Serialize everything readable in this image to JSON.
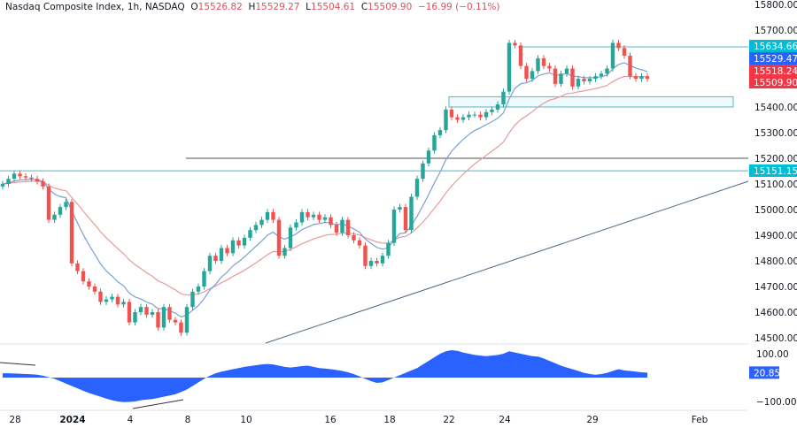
{
  "header": {
    "symbol": "Nasdaq Composite Index, 1h, NASDAQ",
    "open_label": "O",
    "open": "15526.82",
    "high_label": "H",
    "high": "15529.27",
    "low_label": "L",
    "low": "15504.61",
    "close_label": "C",
    "close": "15509.90",
    "change": "−16.99 (−0.11%)"
  },
  "colors": {
    "up": "#26a69a",
    "down": "#ef5350",
    "ema_fast": "#7b9fd4",
    "ema_slow": "#e89a9a",
    "oscillator": "#2962ff",
    "cyan_line": "#4fb8c4",
    "trendline": "#4a6a8a"
  },
  "price_axis": {
    "labels": [
      "15800.00",
      "15700.00",
      "15400.00",
      "15300.00",
      "15200.00",
      "15100.00",
      "15000.00",
      "14900.00",
      "14800.00",
      "14700.00",
      "14600.00",
      "14500.00"
    ],
    "values": [
      15800,
      15700,
      15400,
      15300,
      15200,
      15100,
      15000,
      14900,
      14800,
      14700,
      14600,
      14500
    ],
    "range": [
      14500,
      15800
    ]
  },
  "price_tags": [
    {
      "label": "15634.66",
      "value": 15634.66,
      "color": "#00bcd4"
    },
    {
      "label": "15529.47",
      "value": 15529.47,
      "color": "#2962ff"
    },
    {
      "label": "15518.24",
      "value": 15518.24,
      "color": "#f23645"
    },
    {
      "label": "15509.90",
      "value": 15509.9,
      "color": "#f23645"
    },
    {
      "label": "15151.15",
      "value": 15151.15,
      "color": "#00bcd4"
    }
  ],
  "osc_axis": {
    "labels": [
      "100.00",
      "−100.00"
    ],
    "values": [
      100,
      -100
    ],
    "current": "20.85",
    "current_value": 20.85
  },
  "time_axis": [
    {
      "label": "28",
      "bold": false
    },
    {
      "label": "2024",
      "bold": true
    },
    {
      "label": "4",
      "bold": false
    },
    {
      "label": "8",
      "bold": false
    },
    {
      "label": "10",
      "bold": false
    },
    {
      "label": "16",
      "bold": false
    },
    {
      "label": "18",
      "bold": false
    },
    {
      "label": "22",
      "bold": false
    },
    {
      "label": "24",
      "bold": false
    },
    {
      "label": "29",
      "bold": false
    },
    {
      "label": "Feb",
      "bold": false
    }
  ],
  "chart_data": {
    "type": "candlestick",
    "closes": [
      15100,
      15120,
      15140,
      15130,
      15125,
      15120,
      15110,
      15090,
      14960,
      14980,
      15010,
      15030,
      14790,
      14760,
      14720,
      14700,
      14680,
      14640,
      14650,
      14660,
      14630,
      14640,
      14560,
      14600,
      14620,
      14590,
      14600,
      14540,
      14620,
      14570,
      14560,
      14520,
      14620,
      14680,
      14700,
      14760,
      14820,
      14800,
      14850,
      14830,
      14880,
      14860,
      14890,
      14920,
      14940,
      14960,
      14990,
      14960,
      14820,
      14850,
      14930,
      14950,
      14990,
      14970,
      14980,
      14960,
      14970,
      14940,
      14910,
      14960,
      14900,
      14880,
      14860,
      14780,
      14800,
      14790,
      14820,
      14870,
      15000,
      15010,
      14920,
      15050,
      15120,
      15180,
      15230,
      15290,
      15310,
      15390,
      15360,
      15350,
      15360,
      15370,
      15370,
      15360,
      15380,
      15390,
      15410,
      15460,
      15650,
      15640,
      15560,
      15510,
      15540,
      15590,
      15560,
      15550,
      15490,
      15530,
      15550,
      15480,
      15510,
      15500,
      15510,
      15520,
      15530,
      15550,
      15650,
      15630,
      15600,
      15520,
      15510,
      15520,
      15510
    ],
    "oscillator": [
      18,
      18,
      17,
      16,
      15,
      14,
      12,
      8,
      2,
      -5,
      -15,
      -25,
      -35,
      -45,
      -55,
      -65,
      -72,
      -80,
      -88,
      -95,
      -100,
      -103,
      -102,
      -100,
      -95,
      -92,
      -90,
      -85,
      -80,
      -75,
      -70,
      -60,
      -50,
      -35,
      -20,
      -5,
      8,
      18,
      25,
      30,
      35,
      40,
      45,
      48,
      52,
      55,
      57,
      55,
      50,
      45,
      42,
      45,
      48,
      50,
      45,
      40,
      38,
      35,
      32,
      28,
      22,
      15,
      5,
      -5,
      -15,
      -22,
      -20,
      -10,
      0,
      10,
      20,
      30,
      40,
      55,
      70,
      85,
      100,
      110,
      115,
      112,
      105,
      100,
      95,
      92,
      90,
      92,
      95,
      100,
      110,
      105,
      100,
      95,
      90,
      88,
      80,
      70,
      60,
      50,
      42,
      35,
      28,
      20,
      15,
      12,
      15,
      20,
      28,
      35,
      30,
      28,
      25,
      22,
      21
    ],
    "levels": [
      15634.66,
      15200,
      15151.15
    ],
    "zone": [
      15400,
      15440
    ]
  }
}
